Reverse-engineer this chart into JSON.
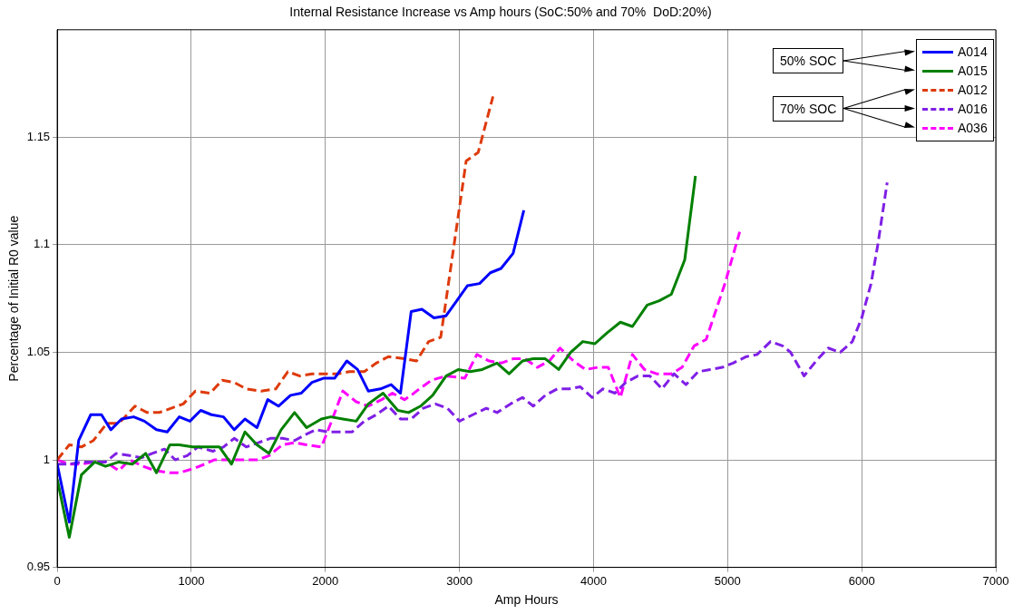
{
  "chart_data": {
    "type": "line",
    "title": "Internal Resistance Increase vs Amp hours (SoC:50% and 70%  DoD:20%)",
    "xlabel": "Amp Hours",
    "ylabel": "Percentage of Initial R0 value",
    "xlim": [
      0,
      7000
    ],
    "xticks": [
      0,
      1000,
      2000,
      3000,
      4000,
      5000,
      6000,
      7000
    ],
    "ylim": [
      0.95,
      1.2
    ],
    "yticks": [
      0.95,
      1,
      1.05,
      1.1,
      1.15
    ],
    "grid": true,
    "legend": "top right",
    "marker": "none",
    "annotations": [
      "50% SOC",
      "70% SOC"
    ],
    "series": [
      {
        "name": "A014",
        "color": "#0000ff",
        "line_style": "solid",
        "x": [
          0,
          90,
          160,
          250,
          330,
          400,
          480,
          570,
          650,
          740,
          820,
          910,
          990,
          1070,
          1150,
          1240,
          1320,
          1400,
          1490,
          1570,
          1650,
          1740,
          1820,
          1900,
          1990,
          2070,
          2160,
          2240,
          2320,
          2410,
          2490,
          2560,
          2640,
          2720,
          2810,
          2900,
          2980,
          3060,
          3150,
          3230,
          3310,
          3400,
          3480
        ],
        "values": [
          0.998,
          0.971,
          1.009,
          1.021,
          1.021,
          1.014,
          1.019,
          1.02,
          1.018,
          1.014,
          1.013,
          1.02,
          1.018,
          1.023,
          1.021,
          1.02,
          1.014,
          1.019,
          1.015,
          1.028,
          1.025,
          1.03,
          1.031,
          1.036,
          1.038,
          1.038,
          1.046,
          1.042,
          1.032,
          1.033,
          1.035,
          1.031,
          1.069,
          1.07,
          1.066,
          1.067,
          1.074,
          1.081,
          1.082,
          1.087,
          1.089,
          1.096,
          1.116
        ]
      },
      {
        "name": "A015",
        "color": "#008000",
        "line_style": "solid",
        "x": [
          0,
          90,
          180,
          280,
          360,
          460,
          560,
          660,
          740,
          840,
          910,
          1010,
          1100,
          1210,
          1300,
          1400,
          1490,
          1580,
          1670,
          1770,
          1860,
          1970,
          2040,
          2130,
          2230,
          2320,
          2430,
          2540,
          2620,
          2710,
          2800,
          2900,
          2990,
          3080,
          3170,
          3280,
          3370,
          3470,
          3550,
          3640,
          3740,
          3830,
          3920,
          4010,
          4100,
          4200,
          4290,
          4400,
          4490,
          4580,
          4680,
          4760
        ],
        "values": [
          0.991,
          0.964,
          0.993,
          0.999,
          0.997,
          0.999,
          0.998,
          1.003,
          0.994,
          1.007,
          1.007,
          1.006,
          1.006,
          1.006,
          0.998,
          1.013,
          1.007,
          1.003,
          1.014,
          1.022,
          1.015,
          1.019,
          1.02,
          1.019,
          1.018,
          1.026,
          1.031,
          1.023,
          1.022,
          1.025,
          1.03,
          1.039,
          1.042,
          1.041,
          1.042,
          1.045,
          1.04,
          1.046,
          1.047,
          1.047,
          1.042,
          1.05,
          1.055,
          1.054,
          1.059,
          1.064,
          1.062,
          1.072,
          1.074,
          1.077,
          1.093,
          1.132
        ]
      },
      {
        "name": "A012",
        "color": "#de3a0b",
        "line_style": "dashed",
        "x": [
          0,
          90,
          180,
          270,
          370,
          460,
          580,
          670,
          760,
          850,
          940,
          1030,
          1140,
          1230,
          1320,
          1410,
          1520,
          1630,
          1720,
          1810,
          1900,
          1990,
          2090,
          2180,
          2290,
          2380,
          2470,
          2590,
          2680,
          2770,
          2860,
          3050,
          3140,
          3250
        ],
        "values": [
          1,
          1.007,
          1.006,
          1.009,
          1.017,
          1.017,
          1.025,
          1.022,
          1.022,
          1.024,
          1.026,
          1.032,
          1.031,
          1.037,
          1.036,
          1.033,
          1.032,
          1.033,
          1.041,
          1.039,
          1.04,
          1.04,
          1.04,
          1.041,
          1.041,
          1.045,
          1.048,
          1.047,
          1.046,
          1.055,
          1.057,
          1.139,
          1.143,
          1.169
        ]
      },
      {
        "name": "A016",
        "color": "#7f1fe6",
        "line_style": "dashed",
        "x": [
          0,
          90,
          180,
          280,
          360,
          440,
          540,
          630,
          710,
          800,
          880,
          970,
          1050,
          1160,
          1240,
          1320,
          1410,
          1500,
          1590,
          1680,
          1770,
          1860,
          1930,
          2020,
          2110,
          2200,
          2290,
          2380,
          2470,
          2560,
          2640,
          2730,
          2820,
          2910,
          3000,
          3100,
          3200,
          3280,
          3380,
          3470,
          3550,
          3640,
          3730,
          3820,
          3900,
          3990,
          4070,
          4160,
          4240,
          4330,
          4420,
          4510,
          4600,
          4690,
          4780,
          4870,
          4960,
          5040,
          5140,
          5220,
          5320,
          5410,
          5470,
          5570,
          5660,
          5750,
          5840,
          5930,
          6000,
          6070,
          6120,
          6190
        ],
        "values": [
          0.998,
          0.998,
          0.999,
          0.999,
          0.999,
          1.003,
          1.002,
          1.001,
          1.003,
          1.005,
          1,
          1.002,
          1.006,
          1.004,
          1.006,
          1.01,
          1.006,
          1.008,
          1.01,
          1.01,
          1.009,
          1.012,
          1.014,
          1.013,
          1.013,
          1.013,
          1.018,
          1.021,
          1.025,
          1.019,
          1.019,
          1.024,
          1.026,
          1.024,
          1.018,
          1.021,
          1.024,
          1.022,
          1.026,
          1.029,
          1.025,
          1.03,
          1.033,
          1.033,
          1.034,
          1.029,
          1.033,
          1.031,
          1.036,
          1.039,
          1.039,
          1.033,
          1.04,
          1.035,
          1.041,
          1.042,
          1.043,
          1.045,
          1.048,
          1.049,
          1.055,
          1.053,
          1.05,
          1.039,
          1.046,
          1.052,
          1.05,
          1.055,
          1.066,
          1.082,
          1.1,
          1.129
        ]
      },
      {
        "name": "A036",
        "color": "#ff00ff",
        "line_style": "dashed",
        "x": [
          0,
          90,
          180,
          280,
          360,
          460,
          540,
          640,
          730,
          840,
          910,
          1020,
          1100,
          1170,
          1280,
          1380,
          1500,
          1580,
          1680,
          1770,
          1860,
          1970,
          2040,
          2130,
          2230,
          2320,
          2420,
          2500,
          2590,
          2640,
          2680,
          2790,
          2900,
          3040,
          3130,
          3220,
          3310,
          3400,
          3490,
          3580,
          3670,
          3750,
          3850,
          3940,
          4030,
          4110,
          4200,
          4290,
          4380,
          4470,
          4580,
          4660,
          4750,
          4840,
          4980,
          5090
        ],
        "values": [
          1,
          0.998,
          0.998,
          0.999,
          0.999,
          0.995,
          1,
          0.997,
          0.995,
          0.994,
          0.994,
          0.996,
          0.998,
          1,
          1,
          1,
          1,
          1.002,
          1.007,
          1.008,
          1.007,
          1.006,
          1.017,
          1.032,
          1.027,
          1.025,
          1.028,
          1.031,
          1.028,
          1.03,
          1.032,
          1.037,
          1.039,
          1.038,
          1.049,
          1.046,
          1.045,
          1.047,
          1.047,
          1.043,
          1.046,
          1.052,
          1.046,
          1.042,
          1.043,
          1.043,
          1.029,
          1.049,
          1.042,
          1.04,
          1.04,
          1.043,
          1.053,
          1.056,
          1.082,
          1.106
        ]
      }
    ]
  }
}
